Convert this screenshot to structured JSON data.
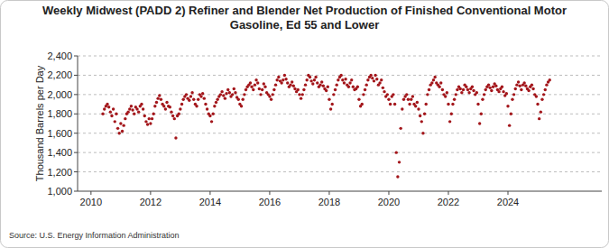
{
  "chart_data": {
    "type": "scatter",
    "title": "Weekly Midwest (PADD 2) Refiner and Blender Net Production of Finished Conventional Motor Gasoline, Ed 55 and Lower",
    "y_label": "Thousand Barrels per Day",
    "source": "Source: U.S. Energy Information Administration",
    "color": "#a3161b",
    "marker": "circle",
    "grid": true,
    "xlim": [
      2009.55,
      2027.15
    ],
    "xticks": [
      2010,
      2012,
      2014,
      2016,
      2018,
      2020,
      2022,
      2024
    ],
    "ylim": [
      1000,
      2400
    ],
    "yticks": [
      {
        "value": 1000,
        "label": "1,000"
      },
      {
        "value": 1200,
        "label": "1,200"
      },
      {
        "value": 1400,
        "label": "1,400"
      },
      {
        "value": 1600,
        "label": "1,600"
      },
      {
        "value": 1800,
        "label": "1,800"
      },
      {
        "value": 2000,
        "label": "2,000"
      },
      {
        "value": 2200,
        "label": "2,200"
      },
      {
        "value": 2400,
        "label": "2,400"
      }
    ],
    "x": [
      2010.4,
      2010.45,
      2010.5,
      2010.55,
      2010.6,
      2010.65,
      2010.7,
      2010.75,
      2010.8,
      2010.85,
      2010.9,
      2010.95,
      2011.0,
      2011.05,
      2011.1,
      2011.15,
      2011.2,
      2011.25,
      2011.3,
      2011.35,
      2011.4,
      2011.45,
      2011.5,
      2011.55,
      2011.6,
      2011.65,
      2011.7,
      2011.75,
      2011.8,
      2011.85,
      2011.9,
      2011.95,
      2012.0,
      2012.05,
      2012.1,
      2012.15,
      2012.2,
      2012.25,
      2012.3,
      2012.35,
      2012.4,
      2012.45,
      2012.5,
      2012.55,
      2012.6,
      2012.65,
      2012.7,
      2012.75,
      2012.8,
      2012.85,
      2012.9,
      2012.95,
      2013.0,
      2013.05,
      2013.1,
      2013.15,
      2013.2,
      2013.25,
      2013.3,
      2013.35,
      2013.4,
      2013.45,
      2013.5,
      2013.55,
      2013.6,
      2013.65,
      2013.7,
      2013.75,
      2013.8,
      2013.85,
      2013.9,
      2013.95,
      2014.0,
      2014.05,
      2014.1,
      2014.15,
      2014.2,
      2014.25,
      2014.3,
      2014.35,
      2014.4,
      2014.45,
      2014.5,
      2014.55,
      2014.6,
      2014.65,
      2014.7,
      2014.75,
      2014.8,
      2014.85,
      2014.9,
      2014.95,
      2015.0,
      2015.05,
      2015.1,
      2015.15,
      2015.2,
      2015.25,
      2015.3,
      2015.35,
      2015.4,
      2015.45,
      2015.5,
      2015.55,
      2015.6,
      2015.65,
      2015.7,
      2015.75,
      2015.8,
      2015.85,
      2015.9,
      2015.95,
      2016.0,
      2016.05,
      2016.1,
      2016.15,
      2016.2,
      2016.25,
      2016.3,
      2016.35,
      2016.4,
      2016.45,
      2016.5,
      2016.55,
      2016.6,
      2016.65,
      2016.7,
      2016.75,
      2016.8,
      2016.85,
      2016.9,
      2016.95,
      2017.0,
      2017.05,
      2017.1,
      2017.15,
      2017.2,
      2017.25,
      2017.3,
      2017.35,
      2017.4,
      2017.45,
      2017.5,
      2017.55,
      2017.6,
      2017.65,
      2017.7,
      2017.75,
      2017.8,
      2017.85,
      2017.9,
      2017.95,
      2018.0,
      2018.05,
      2018.1,
      2018.15,
      2018.2,
      2018.25,
      2018.3,
      2018.35,
      2018.4,
      2018.45,
      2018.5,
      2018.55,
      2018.6,
      2018.65,
      2018.7,
      2018.75,
      2018.8,
      2018.85,
      2018.9,
      2018.95,
      2019.0,
      2019.05,
      2019.1,
      2019.15,
      2019.2,
      2019.25,
      2019.3,
      2019.35,
      2019.4,
      2019.45,
      2019.5,
      2019.55,
      2019.6,
      2019.65,
      2019.7,
      2019.75,
      2019.8,
      2019.85,
      2019.9,
      2019.95,
      2020.0,
      2020.05,
      2020.1,
      2020.15,
      2020.2,
      2020.25,
      2020.3,
      2020.35,
      2020.4,
      2020.45,
      2020.5,
      2020.55,
      2020.6,
      2020.65,
      2020.7,
      2020.75,
      2020.8,
      2020.85,
      2020.9,
      2020.95,
      2021.0,
      2021.05,
      2021.1,
      2021.15,
      2021.2,
      2021.25,
      2021.3,
      2021.35,
      2021.4,
      2021.45,
      2021.5,
      2021.55,
      2021.6,
      2021.65,
      2021.7,
      2021.75,
      2021.8,
      2021.85,
      2021.9,
      2021.95,
      2022.0,
      2022.05,
      2022.1,
      2022.15,
      2022.2,
      2022.25,
      2022.3,
      2022.35,
      2022.4,
      2022.45,
      2022.5,
      2022.55,
      2022.6,
      2022.65,
      2022.7,
      2022.75,
      2022.8,
      2022.85,
      2022.9,
      2022.95,
      2023.0,
      2023.05,
      2023.1,
      2023.15,
      2023.2,
      2023.25,
      2023.3,
      2023.35,
      2023.4,
      2023.45,
      2023.5,
      2023.55,
      2023.6,
      2023.65,
      2023.7,
      2023.75,
      2023.8,
      2023.85,
      2023.9,
      2023.95,
      2024.0,
      2024.05,
      2024.1,
      2024.15,
      2024.2,
      2024.25,
      2024.3,
      2024.35,
      2024.4,
      2024.45,
      2024.5,
      2024.55,
      2024.6,
      2024.65,
      2024.7,
      2024.75,
      2024.8,
      2024.85,
      2024.9,
      2024.95,
      2025.0,
      2025.05,
      2025.1,
      2025.15,
      2025.2,
      2025.25,
      2025.3,
      2025.35,
      2025.4
    ],
    "values": [
      1800,
      1850,
      1880,
      1900,
      1870,
      1820,
      1780,
      1850,
      1720,
      1800,
      1650,
      1600,
      1700,
      1620,
      1680,
      1750,
      1800,
      1820,
      1850,
      1880,
      1840,
      1800,
      1870,
      1850,
      1820,
      1880,
      1900,
      1850,
      1780,
      1720,
      1690,
      1750,
      1700,
      1750,
      1800,
      1880,
      1920,
      1960,
      1990,
      1950,
      1900,
      1880,
      1850,
      1920,
      1880,
      1870,
      1820,
      1780,
      1750,
      1550,
      1780,
      1800,
      1850,
      1900,
      1950,
      1980,
      2000,
      1960,
      1940,
      1980,
      2020,
      1950,
      1900,
      1880,
      1950,
      2000,
      1980,
      2010,
      1960,
      1900,
      1850,
      1800,
      1780,
      1720,
      1800,
      1880,
      1920,
      1950,
      1980,
      2000,
      2030,
      1990,
      1960,
      2010,
      2050,
      2020,
      1980,
      2000,
      2060,
      2020,
      1970,
      1950,
      1900,
      1880,
      1950,
      2000,
      2050,
      2080,
      2100,
      2120,
      2080,
      2050,
      2100,
      2150,
      2120,
      2060,
      2000,
      2050,
      2110,
      2080,
      2020,
      2000,
      1980,
      1950,
      2000,
      2050,
      2100,
      2150,
      2180,
      2140,
      2120,
      2150,
      2200,
      2160,
      2120,
      2080,
      2100,
      2130,
      2090,
      2060,
      2030,
      2050,
      2000,
      1960,
      2000,
      2050,
      2100,
      2150,
      2200,
      2180,
      2140,
      2110,
      2150,
      2180,
      2120,
      2080,
      2100,
      2130,
      2090,
      2060,
      2040,
      2080,
      1950,
      1850,
      1900,
      2000,
      2050,
      2100,
      2150,
      2180,
      2200,
      2150,
      2120,
      2160,
      2100,
      2080,
      2120,
      2150,
      2080,
      2050,
      2060,
      2080,
      1950,
      1880,
      1900,
      2000,
      2050,
      2100,
      2150,
      2180,
      2200,
      2170,
      2140,
      2200,
      2160,
      2100,
      2120,
      2150,
      2070,
      2030,
      1980,
      2000,
      1950,
      1900,
      1980,
      2000,
      1900,
      1400,
      1150,
      1300,
      1650,
      1850,
      1950,
      1980,
      2000,
      1950,
      1900,
      1950,
      1980,
      1900,
      1880,
      1920,
      1850,
      1780,
      1720,
      1600,
      1800,
      1900,
      2000,
      2050,
      2100,
      2120,
      2150,
      2180,
      2120,
      2100,
      2080,
      2120,
      2050,
      2000,
      1980,
      2020,
      1900,
      1720,
      1800,
      1900,
      1950,
      2000,
      2050,
      2080,
      2060,
      2020,
      2050,
      2100,
      2080,
      2050,
      2020,
      2060,
      2080,
      2040,
      2000,
      2020,
      1900,
      1700,
      1800,
      1950,
      2000,
      2050,
      2080,
      2100,
      2070,
      2040,
      2080,
      2110,
      2090,
      2050,
      2030,
      2060,
      2080,
      2030,
      1990,
      2010,
      1880,
      1680,
      1800,
      1950,
      2000,
      2060,
      2100,
      2130,
      2090,
      2050,
      2100,
      2120,
      2090,
      2060,
      2040,
      2080,
      2100,
      2060,
      2000,
      1980,
      1900,
      1750,
      1820,
      1950,
      2000,
      2050,
      2100,
      2130,
      2150
    ]
  }
}
